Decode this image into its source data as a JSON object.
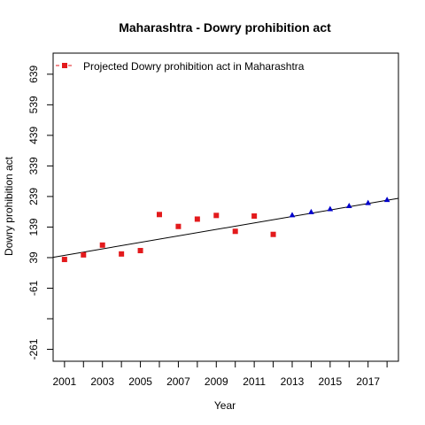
{
  "chart_data": {
    "type": "scatter",
    "title": "Maharashtra  -  Dowry prohibition act",
    "xlabel": "Year",
    "ylabel": "Dowry prohibition act",
    "xlim": [
      2000.4,
      2018.6
    ],
    "ylim": [
      -300,
      708
    ],
    "x_ticks": [
      2001,
      2003,
      2005,
      2007,
      2009,
      2011,
      2013,
      2015,
      2017
    ],
    "x_minor_ticks": [
      2002,
      2004,
      2006,
      2008,
      2010,
      2012,
      2014,
      2016,
      2018
    ],
    "y_ticks": [
      -261,
      -61,
      39,
      139,
      239,
      339,
      439,
      539,
      639
    ],
    "y_minor_ticks": [
      -161
    ],
    "legend": {
      "label": "Projected  Dowry prohibition act  in  Maharashtra",
      "position": "top-left"
    },
    "series": [
      {
        "marker": "square",
        "color": "#e31a1c",
        "x": [
          2001,
          2002,
          2003,
          2004,
          2005,
          2006,
          2007,
          2008,
          2009,
          2010,
          2011,
          2012
        ],
        "y": [
          33,
          48,
          80,
          51,
          62,
          180,
          141,
          165,
          177,
          125,
          175,
          115
        ]
      },
      {
        "marker": "triangle",
        "color": "#0000cc",
        "x": [
          2013,
          2014,
          2015,
          2016,
          2017,
          2018
        ],
        "y": [
          178,
          188,
          198,
          208,
          218,
          228
        ]
      }
    ],
    "trendline": {
      "color": "#000000",
      "points": [
        [
          2000.4,
          40
        ],
        [
          2018.6,
          233
        ]
      ]
    },
    "grid": false
  }
}
